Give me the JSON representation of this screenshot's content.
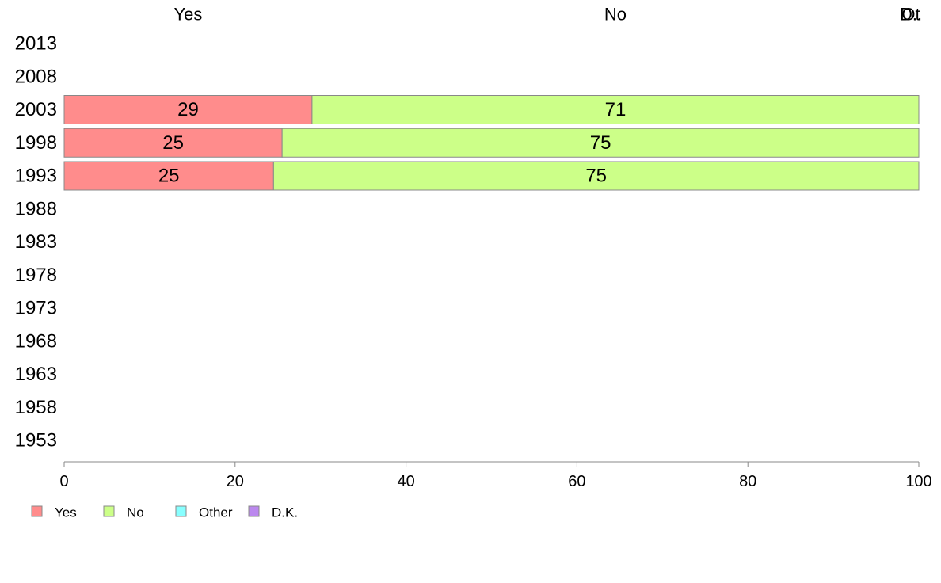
{
  "chart_data": {
    "type": "bar",
    "orientation": "horizontal",
    "stacked": true,
    "categories": [
      "2013",
      "2008",
      "2003",
      "1998",
      "1993",
      "1988",
      "1983",
      "1978",
      "1973",
      "1968",
      "1963",
      "1958",
      "1953"
    ],
    "series": [
      {
        "name": "Yes",
        "color": "#ff8c8c",
        "values": [
          null,
          null,
          29,
          25.5,
          24.5,
          null,
          null,
          null,
          null,
          null,
          null,
          null,
          null
        ],
        "labels": [
          "",
          "",
          "29",
          "25",
          "25",
          "",
          "",
          "",
          "",
          "",
          "",
          "",
          ""
        ]
      },
      {
        "name": "No",
        "color": "#ccff88",
        "values": [
          null,
          null,
          71,
          74.5,
          75.5,
          null,
          null,
          null,
          null,
          null,
          null,
          null,
          null
        ],
        "labels": [
          "",
          "",
          "71",
          "75",
          "75",
          "",
          "",
          "",
          "",
          "",
          "",
          "",
          ""
        ]
      },
      {
        "name": "Other",
        "color": "#88ffff",
        "values": [
          null,
          null,
          0,
          0,
          0,
          null,
          null,
          null,
          null,
          null,
          null,
          null,
          null
        ],
        "labels": []
      },
      {
        "name": "D.K.",
        "color": "#bb88ee",
        "values": [
          null,
          null,
          0,
          0,
          0,
          null,
          null,
          null,
          null,
          null,
          null,
          null,
          null
        ],
        "labels": []
      }
    ],
    "top_labels": [
      "Yes",
      "No",
      "Ot",
      "D.."
    ],
    "xlim": [
      0,
      100
    ],
    "xticks": [
      "0",
      "20",
      "40",
      "60",
      "80",
      "100"
    ],
    "title": "",
    "xlabel": "",
    "ylabel": "",
    "grid": false,
    "legend": {
      "position": "bottom-left",
      "items": [
        "Yes",
        "No",
        "Other",
        "D.K."
      ]
    }
  }
}
